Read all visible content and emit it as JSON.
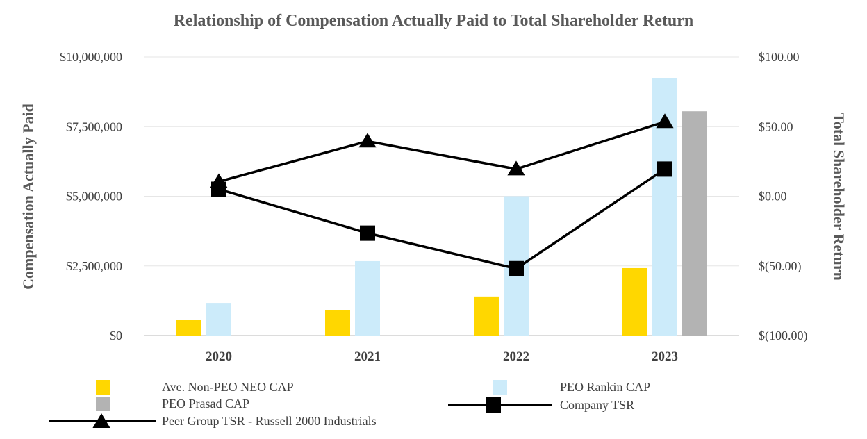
{
  "chart_data": {
    "type": "bar",
    "title": "Relationship of Compensation Actually Paid to Total Shareholder Return",
    "xlabel": "",
    "ylabel": "Compensation Actually Paid",
    "y2label": "Total Shareholder Return",
    "categories": [
      "2020",
      "2021",
      "2022",
      "2023"
    ],
    "ylim": [
      0,
      10000000
    ],
    "y2lim": [
      -100,
      100
    ],
    "yticks": [
      "$0",
      "$2,500,000",
      "$5,000,000",
      "$7,500,000",
      "$10,000,000"
    ],
    "y2ticks": [
      "$(100.00)",
      "$(50.00)",
      "$0.00",
      "$50.00",
      "$100.00"
    ],
    "grid": true,
    "legend_position": "bottom",
    "series": [
      {
        "name": "Ave. Non-PEO NEO CAP",
        "kind": "bar",
        "color": "#FFD700",
        "values": [
          550000,
          900000,
          1400000,
          2420000
        ]
      },
      {
        "name": "PEO Rankin CAP",
        "kind": "bar",
        "color": "#CCEBFA",
        "values": [
          1170000,
          2670000,
          5000000,
          9250000
        ]
      },
      {
        "name": "PEO Prasad CAP",
        "kind": "bar",
        "color": "#B3B3B3",
        "values": [
          null,
          null,
          null,
          8050000
        ]
      },
      {
        "name": "Company TSR",
        "kind": "line",
        "axis": "right",
        "marker": "square",
        "color": "#000000",
        "values": [
          5.0,
          -26.5,
          -52.0,
          19.5
        ]
      },
      {
        "name": "Peer Group TSR  - Russell 2000 Industrials",
        "kind": "line",
        "axis": "right",
        "marker": "triangle",
        "color": "#000000",
        "values": [
          10.5,
          39.5,
          19.5,
          53.5
        ]
      }
    ]
  }
}
